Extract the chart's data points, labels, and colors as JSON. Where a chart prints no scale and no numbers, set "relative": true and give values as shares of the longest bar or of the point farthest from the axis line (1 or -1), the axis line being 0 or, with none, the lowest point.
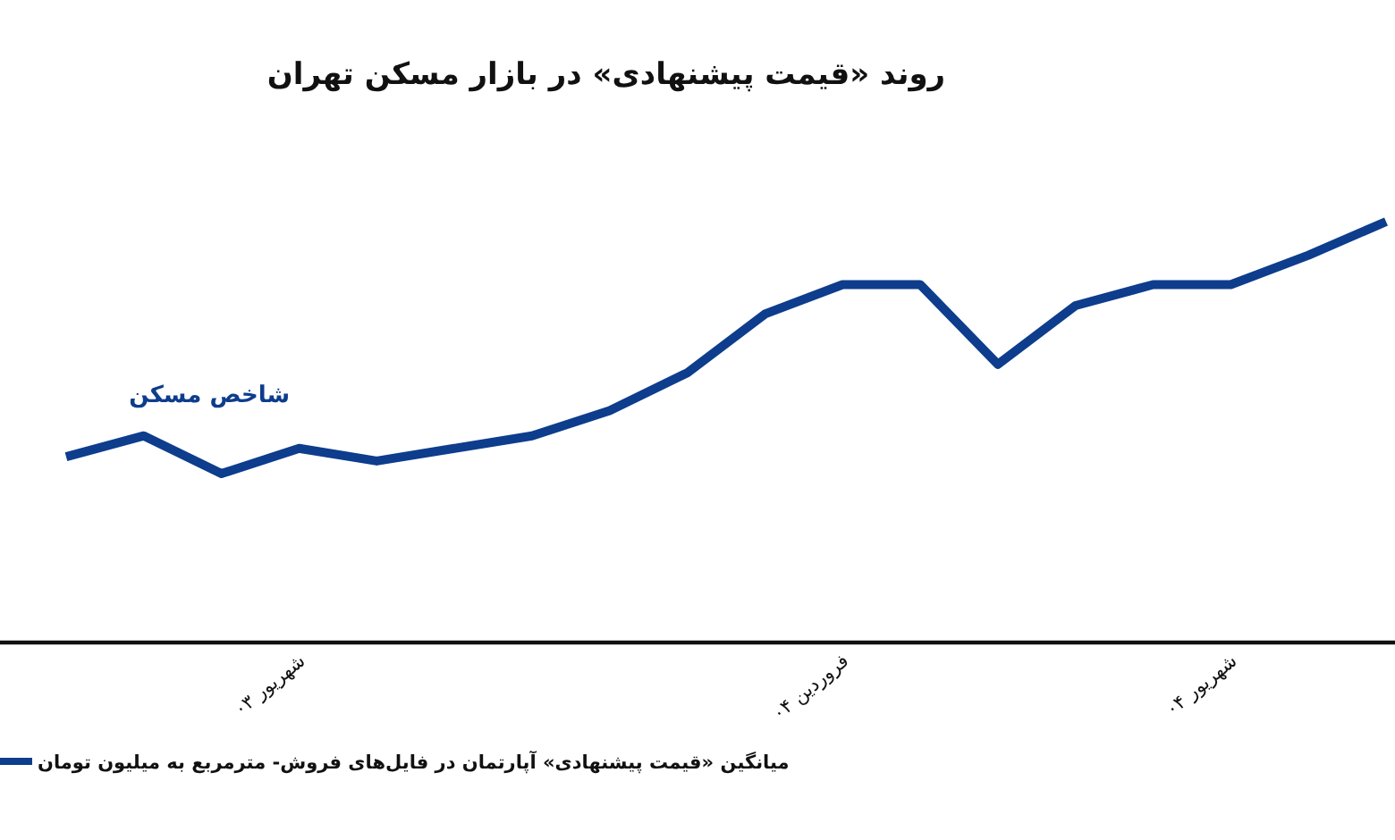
{
  "chart_data": {
    "type": "line",
    "title": "روند «قیمت پیشنهادی» در بازار مسکن تهران",
    "categories": [
      null,
      null,
      null,
      "شهریور ۰۳",
      null,
      null,
      null,
      null,
      null,
      null,
      "فروردین ۰۴",
      null,
      null,
      null,
      null,
      "شهریور ۰۴",
      null,
      null
    ],
    "series": [
      {
        "name": "میانگین «قیمت پیشنهادی» آپارتمان در فایل‌های فروش- مترمربع به میلیون تومان",
        "color": "#0d3d8c",
        "values": [
          0.44,
          0.49,
          0.4,
          0.46,
          0.43,
          0.46,
          0.49,
          0.55,
          0.64,
          0.78,
          0.85,
          0.85,
          0.66,
          0.8,
          0.85,
          0.85,
          0.92,
          1
        ]
      }
    ],
    "relative": true,
    "legend": "bottom left",
    "annotations": [
      "شاخص مسکن"
    ]
  }
}
